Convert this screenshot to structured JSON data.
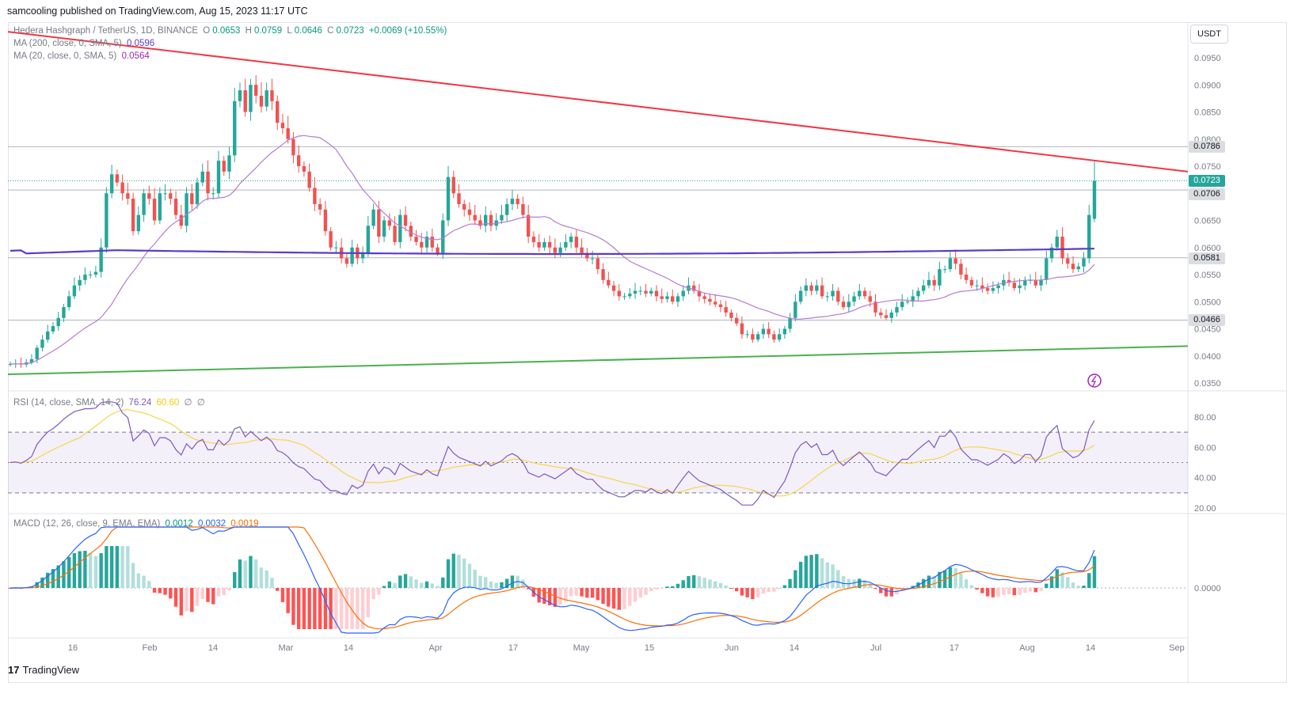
{
  "header": {
    "published": "samcooling published on TradingView.com, Aug 15, 2023 11:17 UTC"
  },
  "legend": {
    "symbol": "Hedera Hashgraph / TetherUS, 1D, BINANCE",
    "o_label": "O",
    "o": "0.0653",
    "h_label": "H",
    "h": "0.0759",
    "l_label": "L",
    "l": "0.0646",
    "c_label": "C",
    "c": "0.0723",
    "change": "+0.0069 (+10.55%)",
    "ma200_label": "MA (200, close, 0, SMA, 5)",
    "ma200": "0.0596",
    "ma20_label": "MA (20, close, 0, SMA, 5)",
    "ma20": "0.0564",
    "rsi_label": "RSI (14, close, SMA, 14, 2)",
    "rsi": "76.24",
    "rsi_sma": "60.60",
    "rsi_na1": "∅",
    "rsi_na2": "∅",
    "macd_label": "MACD (12, 26, close, 9, EMA, EMA)",
    "macd_hist": "0.0012",
    "macd": "0.0032",
    "macd_signal": "0.0019"
  },
  "currency_button": "USDT",
  "price_labels": {
    "l1": "0.0786",
    "l2": "0.0723",
    "l3": "0.0706",
    "l4": "0.0581",
    "l5": "0.0466"
  },
  "footer": {
    "brand": "TradingView",
    "logo": "17"
  },
  "colors": {
    "up": "#26a69a",
    "down": "#ef5350",
    "ma200": "#5b3cc4",
    "ma20": "#b57ad3",
    "trend_resistance": "#f23645",
    "trend_support": "#4caf50",
    "rsi": "#7e57c2",
    "rsi_sma": "#f7d54a",
    "macd": "#2962ff",
    "signal": "#ff6d00"
  },
  "chart_data": {
    "type": "candlestick",
    "title": "Hedera Hashgraph / TetherUS, 1D, BINANCE",
    "price_axis": {
      "ticks": [
        "0.0950",
        "0.0900",
        "0.0850",
        "0.0800",
        "0.0750",
        "0.0700",
        "0.0650",
        "0.0600",
        "0.0550",
        "0.0500",
        "0.0450",
        "0.0400",
        "0.0350"
      ]
    },
    "time_axis": {
      "ticks": [
        "16",
        "Feb",
        "14",
        "Mar",
        "14",
        "Apr",
        "17",
        "May",
        "15",
        "Jun",
        "14",
        "Jul",
        "17",
        "Aug",
        "14",
        "Sep"
      ]
    },
    "approx_daily_close": {
      "start": "2023-01-06",
      "values": [
        0.0385,
        0.0386,
        0.0384,
        0.0388,
        0.0394,
        0.0415,
        0.043,
        0.0445,
        0.0455,
        0.047,
        0.049,
        0.051,
        0.053,
        0.054,
        0.055,
        0.055,
        0.0555,
        0.06,
        0.07,
        0.0735,
        0.072,
        0.07,
        0.069,
        0.063,
        0.066,
        0.07,
        0.069,
        0.065,
        0.07,
        0.07,
        0.069,
        0.066,
        0.064,
        0.07,
        0.068,
        0.072,
        0.074,
        0.07,
        0.07,
        0.076,
        0.074,
        0.077,
        0.087,
        0.089,
        0.085,
        0.09,
        0.088,
        0.086,
        0.089,
        0.087,
        0.083,
        0.082,
        0.08,
        0.077,
        0.075,
        0.074,
        0.071,
        0.068,
        0.067,
        0.063,
        0.06,
        0.06,
        0.058,
        0.057,
        0.06,
        0.058,
        0.059,
        0.064,
        0.067,
        0.062,
        0.065,
        0.064,
        0.061,
        0.066,
        0.064,
        0.062,
        0.061,
        0.06,
        0.062,
        0.06,
        0.059,
        0.065,
        0.073,
        0.07,
        0.068,
        0.067,
        0.066,
        0.065,
        0.064,
        0.066,
        0.064,
        0.065,
        0.066,
        0.068,
        0.069,
        0.068,
        0.066,
        0.062,
        0.061,
        0.06,
        0.061,
        0.06,
        0.059,
        0.06,
        0.061,
        0.062,
        0.06,
        0.059,
        0.058,
        0.058,
        0.056,
        0.054,
        0.053,
        0.052,
        0.051,
        0.051,
        0.0515,
        0.052,
        0.052,
        0.0515,
        0.052,
        0.051,
        0.0505,
        0.051,
        0.05,
        0.051,
        0.052,
        0.053,
        0.052,
        0.051,
        0.0505,
        0.05,
        0.0495,
        0.049,
        0.048,
        0.047,
        0.046,
        0.044,
        0.044,
        0.043,
        0.044,
        0.045,
        0.044,
        0.043,
        0.044,
        0.045,
        0.047,
        0.05,
        0.052,
        0.053,
        0.052,
        0.053,
        0.051,
        0.051,
        0.052,
        0.05,
        0.049,
        0.05,
        0.051,
        0.052,
        0.051,
        0.05,
        0.048,
        0.0475,
        0.047,
        0.048,
        0.049,
        0.05,
        0.05,
        0.051,
        0.052,
        0.053,
        0.054,
        0.053,
        0.056,
        0.056,
        0.058,
        0.057,
        0.055,
        0.054,
        0.053,
        0.053,
        0.0525,
        0.052,
        0.0525,
        0.053,
        0.054,
        0.0535,
        0.0525,
        0.053,
        0.054,
        0.054,
        0.053,
        0.054,
        0.058,
        0.06,
        0.062,
        0.058,
        0.057,
        0.056,
        0.0565,
        0.058,
        0.066,
        0.0723
      ]
    },
    "moving_averages": [
      {
        "name": "MA 200",
        "last": 0.0596
      },
      {
        "name": "MA 20",
        "last": 0.0564
      }
    ],
    "horizontal_levels": [
      0.0786,
      0.0706,
      0.0581,
      0.0466
    ],
    "current_price": 0.0723,
    "trendlines": [
      {
        "color": "red",
        "from": [
          "Jan",
          0.099
        ],
        "to": [
          "Aug 15",
          0.0745
        ]
      },
      {
        "color": "green",
        "from": [
          "Jan 6",
          0.0365
        ],
        "to": [
          "Aug 15",
          0.0418
        ]
      }
    ],
    "rsi": {
      "ticks": [
        "80.00",
        "60.00",
        "40.00",
        "20.00"
      ],
      "bands": [
        70,
        50,
        30
      ],
      "last": 76.24,
      "sma": 60.6
    },
    "macd": {
      "ticks": [
        "0.0000"
      ],
      "histogram": 0.0012,
      "macd": 0.0032,
      "signal": 0.0019
    }
  }
}
